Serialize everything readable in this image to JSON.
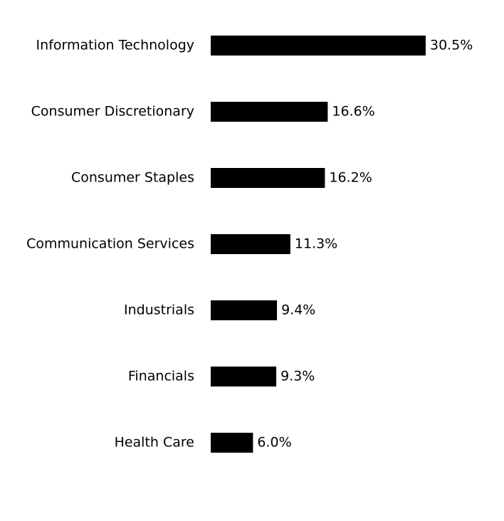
{
  "chart_data": {
    "type": "bar",
    "orientation": "horizontal",
    "categories": [
      "Information Technology",
      "Consumer Discretionary",
      "Consumer Staples",
      "Communication Services",
      "Industrials",
      "Financials",
      "Health Care"
    ],
    "values": [
      30.5,
      16.6,
      16.2,
      11.3,
      9.4,
      9.3,
      6.0
    ],
    "value_labels": [
      "30.5%",
      "16.6%",
      "16.2%",
      "11.3%",
      "9.4%",
      "9.3%",
      "6.0%"
    ],
    "color": "#000000"
  }
}
